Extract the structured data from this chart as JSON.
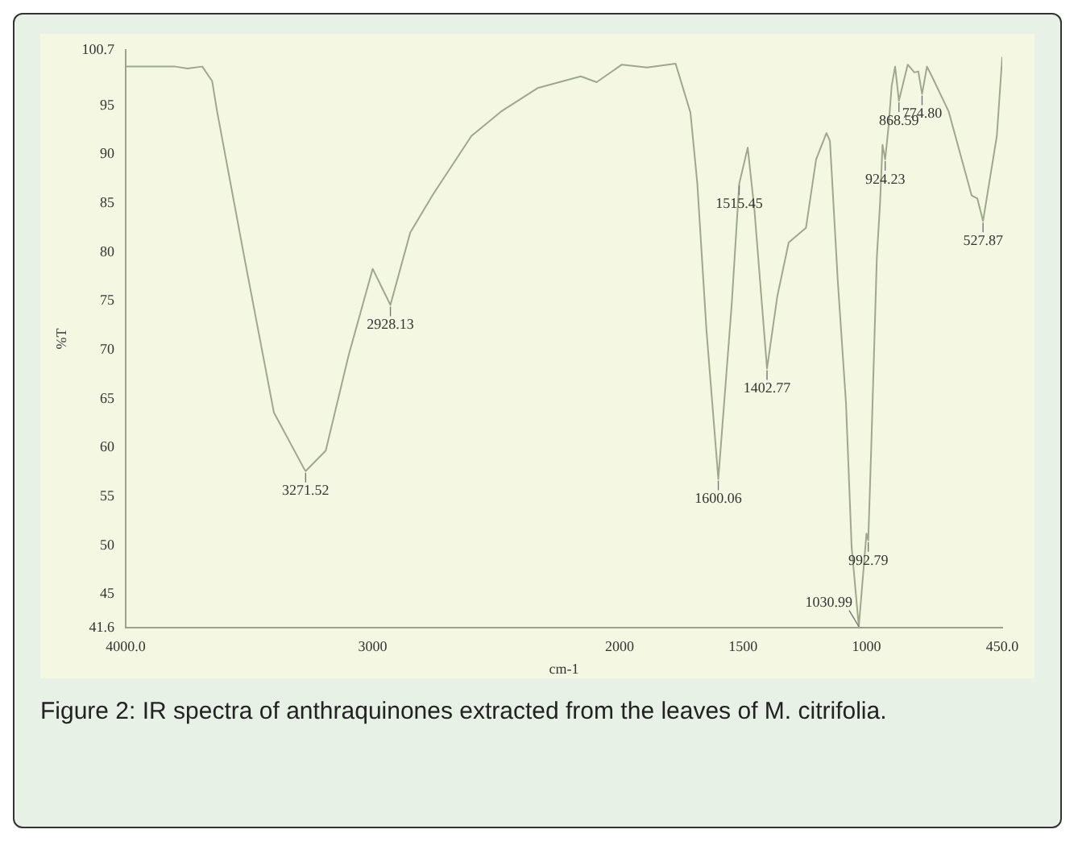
{
  "chart_data": {
    "type": "line",
    "xlabel": "cm-1",
    "ylabel": "%T",
    "x": [
      4000,
      3800,
      3750,
      3690,
      3650,
      3630,
      3520,
      3400,
      3281,
      3271.52,
      3190,
      3097,
      3000,
      2928.13,
      2848,
      2756,
      2600,
      2480,
      2332,
      2157,
      2093,
      1991,
      1889,
      1773,
      1713,
      1685,
      1648,
      1600.06,
      1546,
      1515.45,
      1481,
      1454,
      1402.77,
      1361,
      1315,
      1245,
      1204,
      1162,
      1148,
      1116,
      1083,
      1060,
      1030.99,
      1000,
      992.79,
      981,
      958,
      945,
      935,
      924.23,
      910,
      898,
      884,
      868.59,
      833,
      806,
      790,
      774.8,
      755,
      735,
      667,
      574,
      551,
      527.87,
      472,
      450
    ],
    "series": [
      {
        "color": "#9ea88c",
        "values": [
          99,
          99,
          98.8,
          99,
          97.5,
          94.4,
          79.5,
          63.6,
          58,
          57.6,
          59.7,
          69.5,
          78.3,
          74.6,
          82,
          85.9,
          91.9,
          94.4,
          96.8,
          98,
          97.4,
          99.2,
          98.9,
          99.3,
          94.3,
          87,
          72,
          56.8,
          74.6,
          87,
          90.7,
          84.4,
          68.1,
          75.5,
          81,
          82.5,
          89.5,
          92.2,
          91.4,
          77,
          64.6,
          49.8,
          41.7,
          51.2,
          50.5,
          59.7,
          79.5,
          85,
          91,
          89.5,
          93,
          97,
          99,
          95.5,
          99.2,
          98.4,
          98.5,
          96.2,
          99,
          98,
          94.4,
          85.8,
          85.5,
          83.2,
          91.9,
          100
        ]
      }
    ],
    "xlim": [
      4000,
      450
    ],
    "xticks": [
      {
        "value": 4000,
        "label": "4000.0"
      },
      3000,
      2000,
      1500,
      1000,
      {
        "value": 450,
        "label": "450.0"
      }
    ],
    "ylim": [
      41.6,
      100.7
    ],
    "yticks": [
      41.6,
      45,
      50,
      55,
      60,
      65,
      70,
      75,
      80,
      85,
      90,
      95,
      100.7
    ],
    "grid": false,
    "legend": false,
    "marker": "none",
    "line_style": "solid",
    "annotations": [
      {
        "text": "3271.52",
        "x": 3271.52,
        "y": 57.6
      },
      {
        "text": "2928.13",
        "x": 2928.13,
        "y": 74.6
      },
      {
        "text": "1600.06",
        "x": 1600.06,
        "y": 56.8
      },
      {
        "text": "1515.45",
        "x": 1515.45,
        "y": 87
      },
      {
        "text": "1402.77",
        "x": 1402.77,
        "y": 68.1
      },
      {
        "text": "1030.99",
        "x": 1030.99,
        "y": 41.7
      },
      {
        "text": "992.79",
        "x": 992.79,
        "y": 50.5
      },
      {
        "text": "924.23",
        "x": 924.23,
        "y": 89.5
      },
      {
        "text": "868.59",
        "x": 868.59,
        "y": 95.5
      },
      {
        "text": "774.80",
        "x": 774.8,
        "y": 96.2
      },
      {
        "text": "527.87",
        "x": 527.87,
        "y": 83.2
      },
      "Figure 2: IR spectra of anthraquinones extracted from the leaves of M. citrifolia."
    ]
  }
}
